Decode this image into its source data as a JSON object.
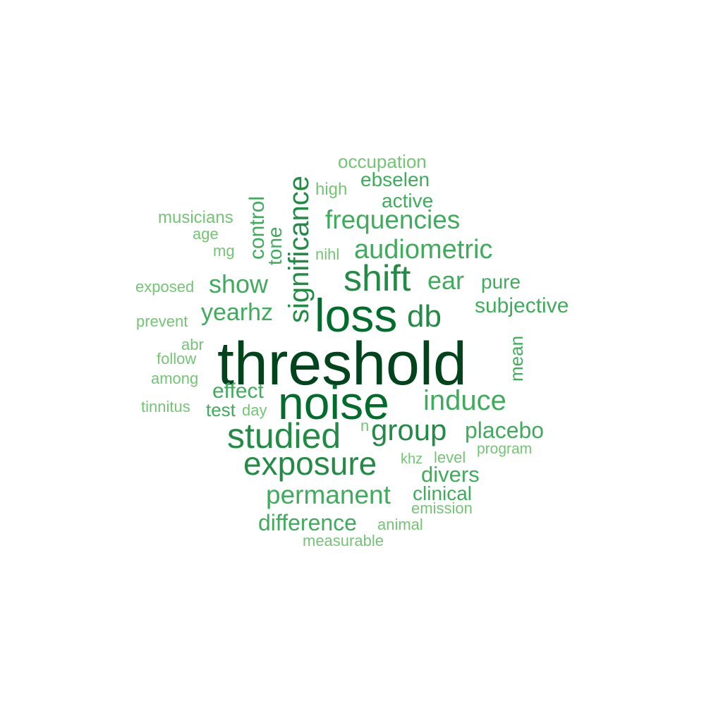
{
  "words": [
    {
      "text": "threshold",
      "weight": 1
    },
    {
      "text": "noise",
      "weight": 2
    },
    {
      "text": "loss",
      "weight": 2
    },
    {
      "text": "shift",
      "weight": 3
    },
    {
      "text": "studied",
      "weight": 3
    },
    {
      "text": "exposure",
      "weight": 3
    },
    {
      "text": "significance",
      "weight": 3
    },
    {
      "text": "group",
      "weight": 3
    },
    {
      "text": "db",
      "weight": 3
    },
    {
      "text": "induce",
      "weight": 4
    },
    {
      "text": "audiometric",
      "weight": 4
    },
    {
      "text": "frequencies",
      "weight": 4
    },
    {
      "text": "permanent",
      "weight": 4
    },
    {
      "text": "placebo",
      "weight": 4
    },
    {
      "text": "ear",
      "weight": 4
    },
    {
      "text": "yearhz",
      "weight": 4
    },
    {
      "text": "show",
      "weight": 4
    },
    {
      "text": "difference",
      "weight": 4
    },
    {
      "text": "divers",
      "weight": 4
    },
    {
      "text": "subjective",
      "weight": 4
    },
    {
      "text": "effect",
      "weight": 4
    },
    {
      "text": "control",
      "weight": 4
    },
    {
      "text": "tone",
      "weight": 4
    },
    {
      "text": "mean",
      "weight": 4
    },
    {
      "text": "pure",
      "weight": 4
    },
    {
      "text": "ebselen",
      "weight": 4
    },
    {
      "text": "active",
      "weight": 4
    },
    {
      "text": "clinical",
      "weight": 4
    },
    {
      "text": "test",
      "weight": 4
    },
    {
      "text": "occupation",
      "weight": 5
    },
    {
      "text": "high",
      "weight": 5
    },
    {
      "text": "musicians",
      "weight": 5
    },
    {
      "text": "age",
      "weight": 5
    },
    {
      "text": "mg",
      "weight": 5
    },
    {
      "text": "nihl",
      "weight": 5
    },
    {
      "text": "exposed",
      "weight": 5
    },
    {
      "text": "prevent",
      "weight": 5
    },
    {
      "text": "abr",
      "weight": 5
    },
    {
      "text": "follow",
      "weight": 5
    },
    {
      "text": "among",
      "weight": 5
    },
    {
      "text": "tinnitus",
      "weight": 5
    },
    {
      "text": "day",
      "weight": 5
    },
    {
      "text": "n",
      "weight": 5
    },
    {
      "text": "khz",
      "weight": 5
    },
    {
      "text": "level",
      "weight": 5
    },
    {
      "text": "program",
      "weight": 5
    },
    {
      "text": "emission",
      "weight": 5
    },
    {
      "text": "animal",
      "weight": 5
    },
    {
      "text": "measurable",
      "weight": 5
    }
  ]
}
